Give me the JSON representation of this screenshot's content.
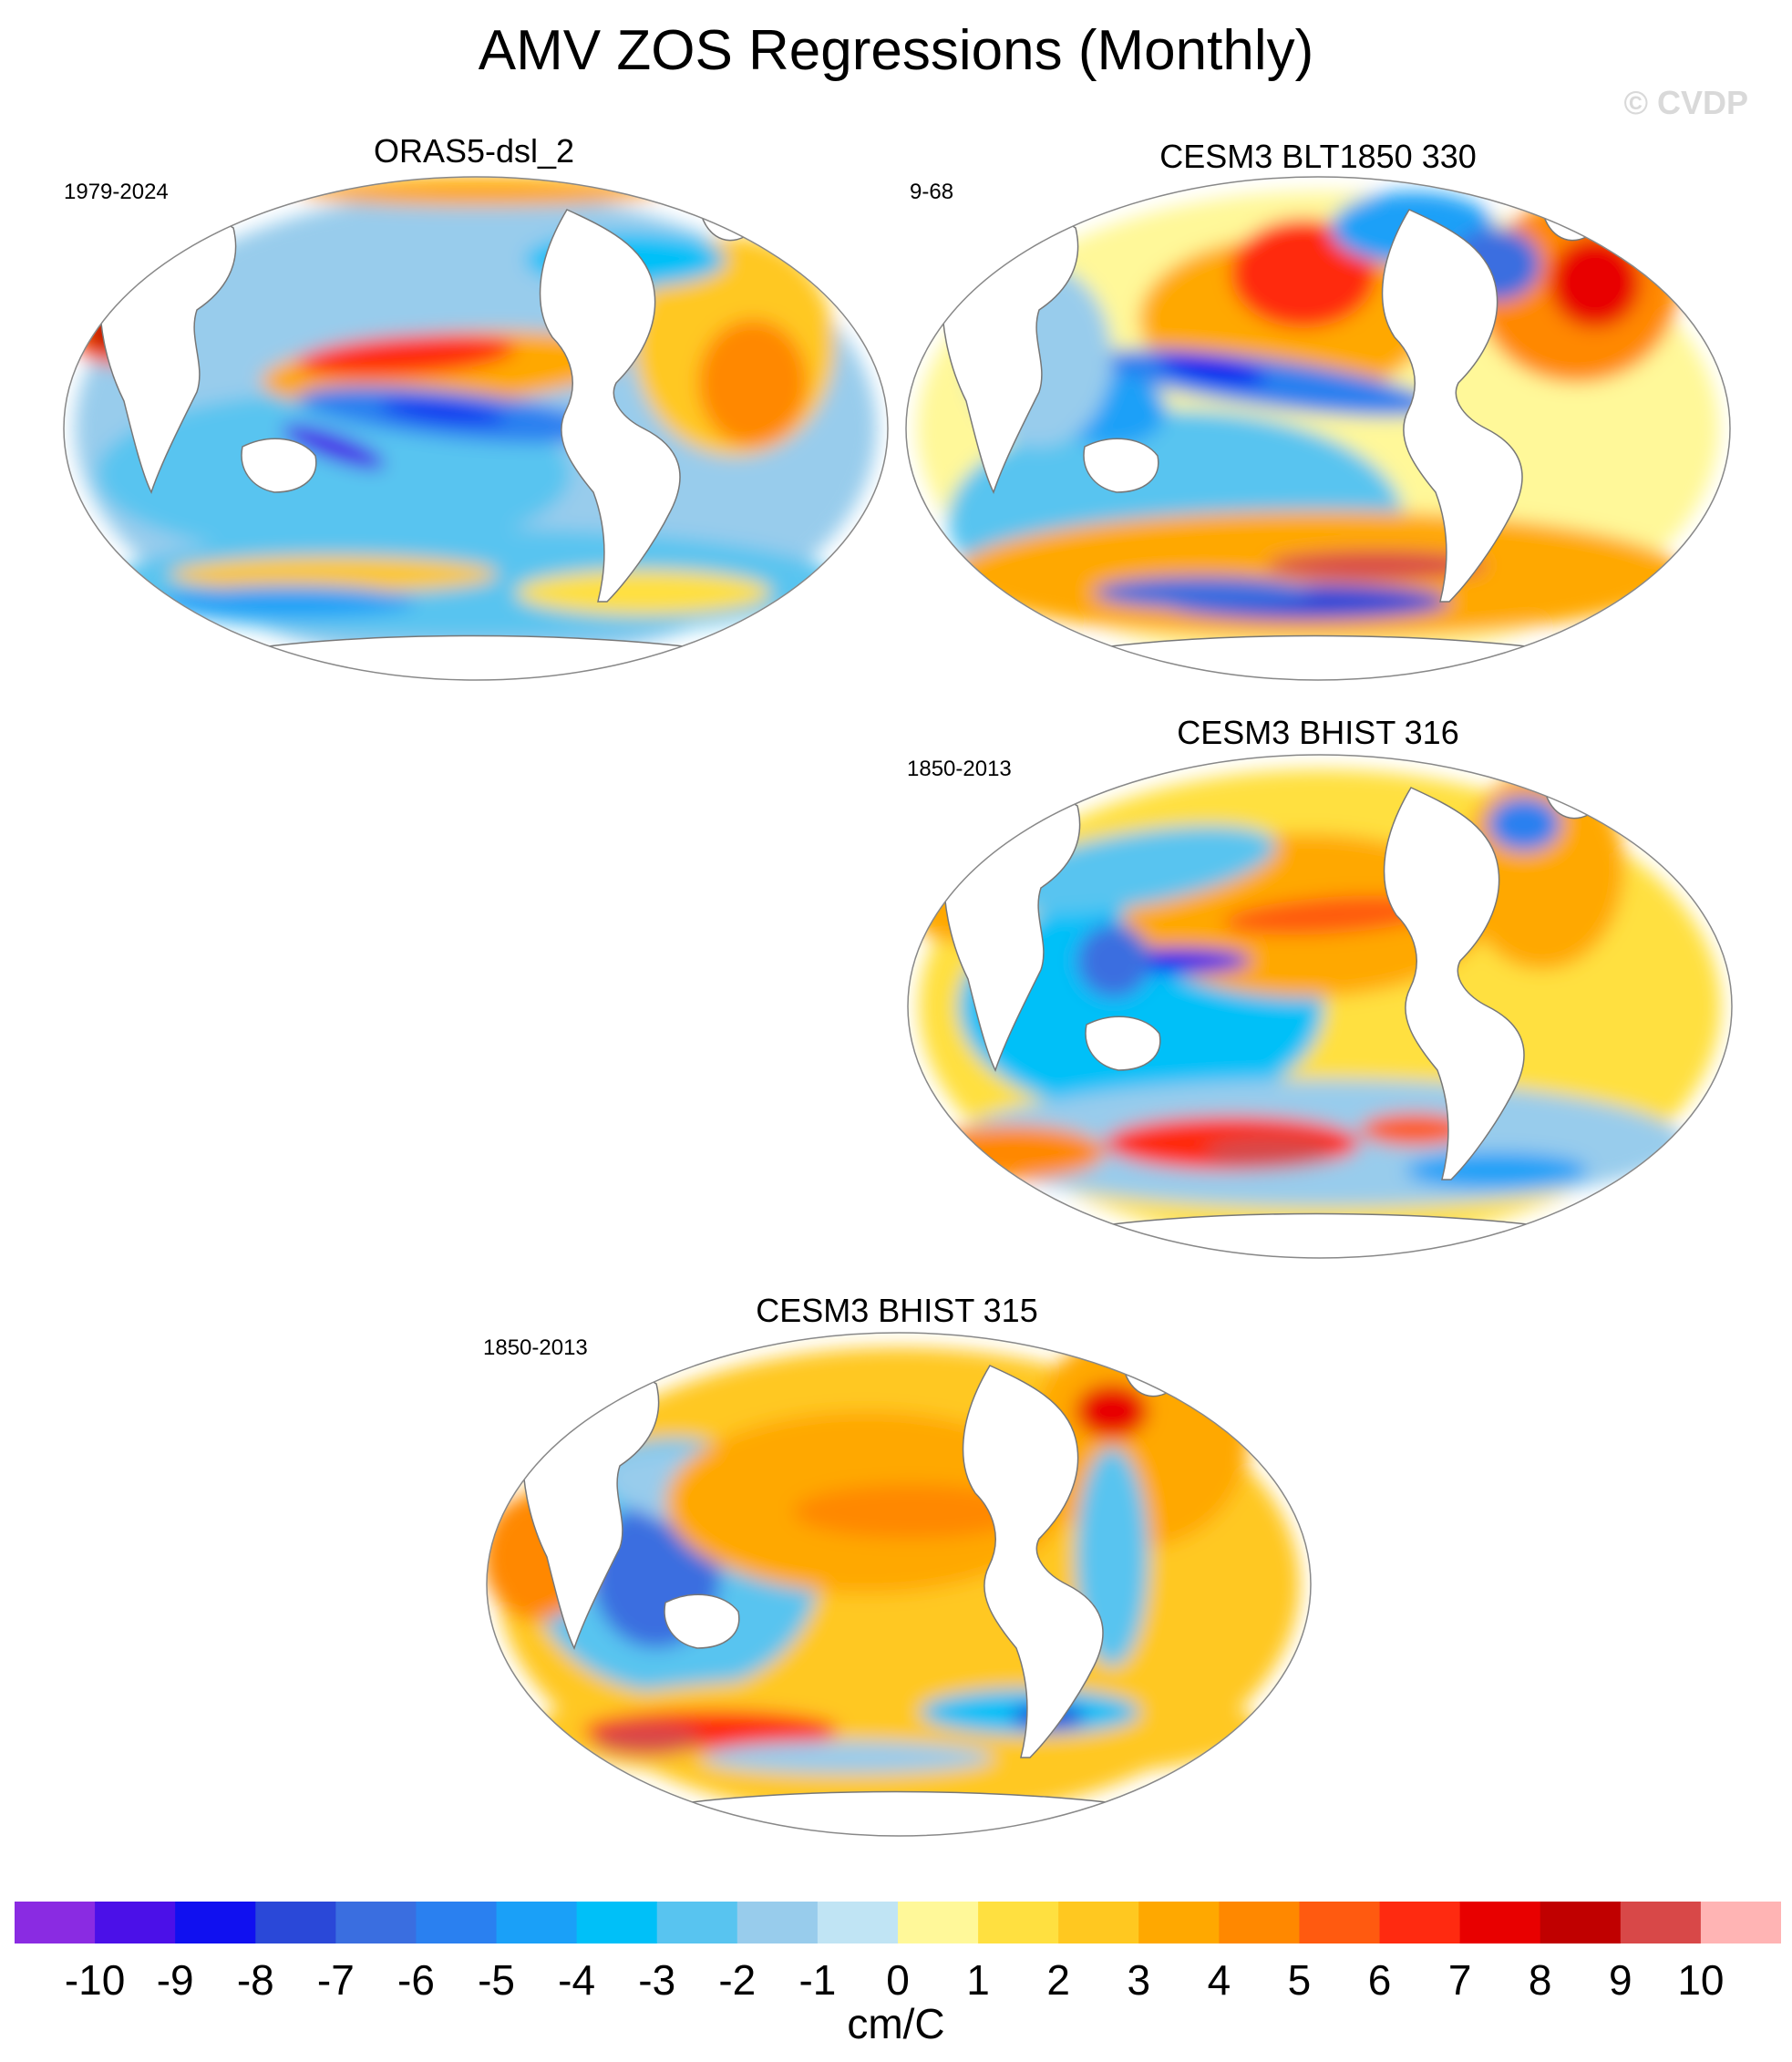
{
  "figure": {
    "title": "AMV ZOS Regressions (Monthly)",
    "copyright": "© CVDP"
  },
  "chart_data": {
    "type": "map",
    "variable": "ZOS",
    "units": "cm/C",
    "projection": "Robinson (global)",
    "panels": [
      {
        "id": "oras5",
        "title": "ORAS5-dsl_2",
        "years": "1979-2024",
        "pattern_notes": "negative tropical Pacific band, positive N. Pacific subtropics, mixed Southern Ocean"
      },
      {
        "id": "blt1850",
        "title": "CESM3 BLT1850 330",
        "years": "9-68",
        "pattern_notes": "positive N. Pacific and N. Atlantic, negative W. tropical Pacific"
      },
      {
        "id": "bhist316",
        "title": "CESM3 BHIST 316",
        "years": "1850-2013",
        "pattern_notes": "positive E. Pacific, negative W. Pacific warm pool, strong positive Southern Ocean"
      },
      {
        "id": "bhist315",
        "title": "CESM3 BHIST 315",
        "years": "1850-2013",
        "pattern_notes": "broad positive Pacific and Atlantic, negative Indo-Pacific"
      }
    ],
    "colorbar": {
      "levels": [
        -10,
        -9,
        -8,
        -7,
        -6,
        -5,
        -4,
        -3,
        -2,
        -1,
        0,
        1,
        2,
        3,
        4,
        5,
        6,
        7,
        8,
        9,
        10
      ],
      "labels": [
        "-10",
        "-9",
        "-8",
        "-7",
        "-6",
        "-5",
        "-4",
        "-3",
        "-2",
        "-1",
        "0",
        "1",
        "2",
        "3",
        "4",
        "5",
        "6",
        "7",
        "8",
        "9",
        "10"
      ],
      "colors": [
        "#8a2be2",
        "#4b10e8",
        "#1010f0",
        "#2a48d8",
        "#3a6ee0",
        "#2a80f0",
        "#1aa0f8",
        "#00c0f8",
        "#58c4f0",
        "#98ccec",
        "#c0e4f4",
        "#fff899",
        "#ffe040",
        "#ffc820",
        "#ffa800",
        "#ff8800",
        "#ff5a10",
        "#ff2a10",
        "#e80000",
        "#c00000",
        "#d84848",
        "#ffb4b4"
      ]
    }
  }
}
